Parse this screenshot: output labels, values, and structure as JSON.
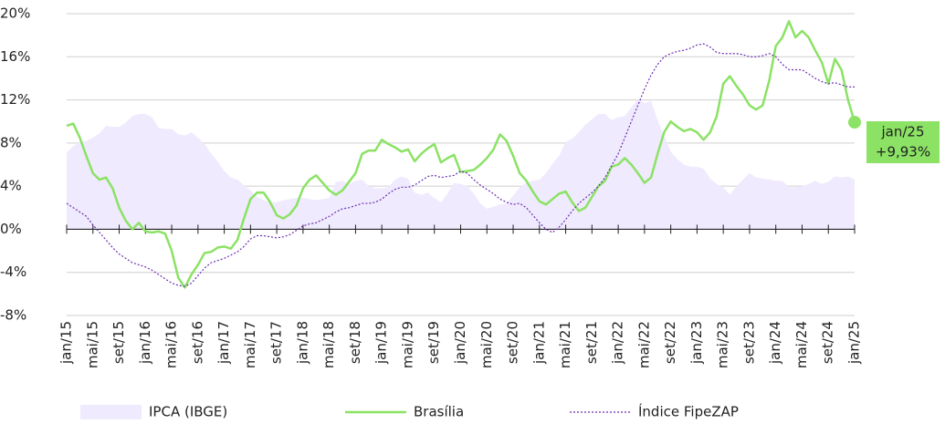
{
  "chart_data": {
    "type": "line",
    "categories": [
      "jan/15",
      null,
      null,
      null,
      "mai/15",
      null,
      null,
      null,
      "set/15",
      null,
      null,
      null,
      "jan/16",
      null,
      null,
      null,
      "mai/16",
      null,
      null,
      null,
      "set/16",
      null,
      null,
      null,
      "jan/17",
      null,
      null,
      null,
      "mai/17",
      null,
      null,
      null,
      "set/17",
      null,
      null,
      null,
      "jan/18",
      null,
      null,
      null,
      "mai/18",
      null,
      null,
      null,
      "set/18",
      null,
      null,
      null,
      "jan/19",
      null,
      null,
      null,
      "mai/19",
      null,
      null,
      null,
      "set/19",
      null,
      null,
      null,
      "jan/20",
      null,
      null,
      null,
      "mai/20",
      null,
      null,
      null,
      "set/20",
      null,
      null,
      null,
      "jan/21",
      null,
      null,
      null,
      "mai/21",
      null,
      null,
      null,
      "set/21",
      null,
      null,
      null,
      "jan/22",
      null,
      null,
      null,
      "mai/22",
      null,
      null,
      null,
      "set/22",
      null,
      null,
      null,
      "jan/23",
      null,
      null,
      null,
      "mai/23",
      null,
      null,
      null,
      "set/23",
      null,
      null,
      null,
      "jan/24",
      null,
      null,
      null,
      "mai/24",
      null,
      null,
      null,
      "set/24",
      null,
      null,
      null,
      "jan/25"
    ],
    "series": [
      {
        "name": "IPCA (IBGE)",
        "style": "area",
        "color": "#efeafd",
        "values": [
          7.1,
          7.7,
          8.1,
          8.2,
          8.5,
          8.9,
          9.6,
          9.5,
          9.5,
          9.9,
          10.5,
          10.7,
          10.7,
          10.4,
          9.4,
          9.3,
          9.3,
          8.8,
          8.7,
          9.0,
          8.5,
          7.9,
          7.0,
          6.3,
          5.4,
          4.8,
          4.6,
          4.1,
          3.6,
          3.0,
          2.7,
          2.5,
          2.5,
          2.7,
          2.8,
          2.9,
          2.9,
          2.8,
          2.7,
          2.8,
          2.9,
          4.4,
          4.5,
          4.2,
          4.5,
          4.6,
          4.0,
          3.8,
          3.8,
          3.9,
          4.6,
          4.9,
          4.7,
          3.4,
          3.2,
          3.4,
          2.9,
          2.5,
          3.3,
          4.3,
          4.2,
          4.0,
          3.3,
          2.4,
          1.9,
          2.1,
          2.3,
          2.4,
          3.1,
          3.9,
          4.3,
          4.5,
          4.6,
          5.2,
          6.1,
          6.8,
          8.1,
          8.4,
          9.0,
          9.7,
          10.2,
          10.7,
          10.7,
          10.1,
          10.4,
          10.5,
          11.3,
          12.1,
          11.7,
          11.9,
          10.1,
          8.7,
          7.2,
          6.5,
          6.0,
          5.8,
          5.8,
          5.6,
          4.7,
          4.2,
          3.9,
          3.2,
          4.0,
          4.6,
          5.2,
          4.8,
          4.7,
          4.6,
          4.5,
          4.5,
          3.9,
          3.9,
          4.0,
          4.2,
          4.5,
          4.2,
          4.4,
          4.9,
          4.8,
          4.9,
          4.6
        ]
      },
      {
        "name": "Brasília",
        "style": "solid",
        "color": "#8be264",
        "values": [
          9.6,
          9.8,
          8.5,
          6.8,
          5.2,
          4.6,
          4.8,
          3.8,
          2.0,
          0.8,
          0.0,
          0.6,
          -0.2,
          -0.3,
          -0.2,
          -0.4,
          -2.0,
          -4.5,
          -5.4,
          -4.2,
          -3.3,
          -2.2,
          -2.1,
          -1.7,
          -1.6,
          -1.8,
          -1.0,
          1.0,
          2.8,
          3.4,
          3.4,
          2.5,
          1.3,
          1.0,
          1.4,
          2.2,
          3.8,
          4.6,
          5.0,
          4.3,
          3.6,
          3.2,
          3.6,
          4.4,
          5.2,
          7.0,
          7.3,
          7.3,
          8.3,
          7.9,
          7.6,
          7.2,
          7.4,
          6.3,
          7.0,
          7.5,
          7.9,
          6.2,
          6.6,
          6.9,
          5.3,
          5.4,
          5.5,
          6.0,
          6.6,
          7.4,
          8.8,
          8.2,
          6.8,
          5.2,
          4.5,
          3.5,
          2.6,
          2.3,
          2.8,
          3.3,
          3.5,
          2.5,
          1.7,
          2.0,
          3.0,
          4.0,
          4.5,
          5.8,
          6.0,
          6.6,
          6.0,
          5.2,
          4.3,
          4.8,
          7.0,
          9.0,
          10.0,
          9.5,
          9.1,
          9.3,
          9.0,
          8.3,
          9.0,
          10.5,
          13.5,
          14.2,
          13.3,
          12.5,
          11.5,
          11.1,
          11.5,
          13.8,
          17.0,
          17.8,
          19.3,
          17.8,
          18.4,
          17.8,
          16.6,
          15.5,
          13.5,
          15.8,
          14.8,
          12.0,
          9.93
        ]
      },
      {
        "name": "Índice FipeZAP",
        "style": "dotted",
        "color": "#6b2fb0",
        "values": [
          2.4,
          2.0,
          1.6,
          1.2,
          0.4,
          -0.3,
          -1.0,
          -1.7,
          -2.3,
          -2.7,
          -3.1,
          -3.3,
          -3.5,
          -3.8,
          -4.2,
          -4.6,
          -5.0,
          -5.2,
          -5.3,
          -5.0,
          -4.3,
          -3.6,
          -3.1,
          -2.9,
          -2.7,
          -2.4,
          -2.1,
          -1.6,
          -0.9,
          -0.6,
          -0.6,
          -0.7,
          -0.8,
          -0.7,
          -0.5,
          -0.1,
          0.3,
          0.5,
          0.6,
          0.9,
          1.2,
          1.6,
          1.9,
          2.0,
          2.2,
          2.4,
          2.4,
          2.5,
          2.8,
          3.3,
          3.7,
          3.9,
          3.9,
          4.1,
          4.5,
          4.9,
          5.0,
          4.8,
          4.9,
          5.0,
          5.4,
          5.2,
          4.6,
          4.1,
          3.7,
          3.3,
          2.8,
          2.5,
          2.3,
          2.4,
          2.0,
          1.3,
          0.6,
          0.0,
          -0.3,
          0.2,
          0.9,
          1.7,
          2.4,
          2.9,
          3.4,
          4.0,
          4.8,
          5.9,
          7.0,
          8.5,
          10.0,
          11.5,
          13.0,
          14.3,
          15.3,
          16.0,
          16.3,
          16.5,
          16.6,
          16.8,
          17.1,
          17.2,
          16.9,
          16.4,
          16.3,
          16.3,
          16.3,
          16.2,
          16.0,
          16.0,
          16.1,
          16.3,
          16.0,
          15.3,
          14.8,
          14.8,
          14.8,
          14.4,
          14.0,
          13.7,
          13.5,
          13.6,
          13.4,
          13.2,
          13.2
        ]
      }
    ],
    "ylim": [
      -8,
      20
    ],
    "yticks": [
      {
        "value": -8,
        "label": "-8%"
      },
      {
        "value": -4,
        "label": "-4%"
      },
      {
        "value": 0,
        "label": "0%"
      },
      {
        "value": 4,
        "label": "4%"
      },
      {
        "value": 8,
        "label": "8%"
      },
      {
        "value": 12,
        "label": "12%"
      },
      {
        "value": 16,
        "label": "16%"
      },
      {
        "value": 20,
        "label": "20%"
      }
    ],
    "grid": true,
    "legend": "bottom",
    "annotation": {
      "lines": [
        "jan/25",
        "+9,93%"
      ],
      "color": "#8be264"
    }
  }
}
